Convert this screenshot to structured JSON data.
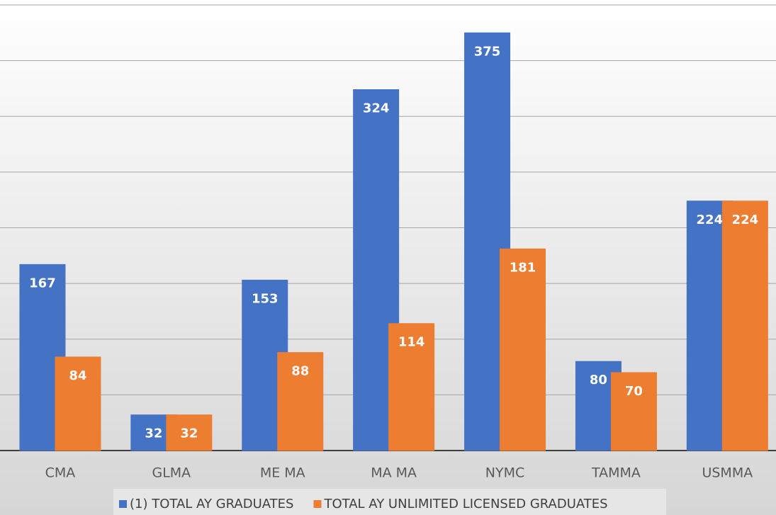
{
  "chart_data": {
    "type": "bar",
    "categories": [
      "CMA",
      "GLMA",
      "ME MA",
      "MA MA",
      "NYMC",
      "TAMMA",
      "USMMA"
    ],
    "series": [
      {
        "name": "(1) TOTAL AY GRADUATES",
        "color": "#4472c4",
        "values": [
          167,
          32,
          153,
          324,
          375,
          80,
          224
        ]
      },
      {
        "name": "TOTAL AY UNLIMITED LICENSED GRADUATES",
        "color": "#ed7d31",
        "values": [
          84,
          32,
          88,
          114,
          181,
          70,
          224
        ]
      }
    ],
    "ylim": [
      0,
      400
    ],
    "yticks": [
      0,
      50,
      100,
      150,
      200,
      250,
      300,
      350,
      400
    ],
    "grid": true
  }
}
